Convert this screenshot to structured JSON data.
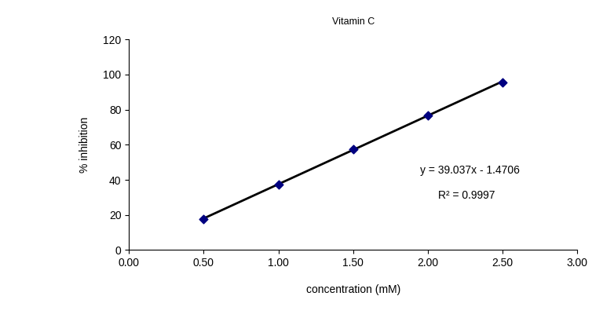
{
  "chart_data": {
    "type": "scatter",
    "title": "Vitamin C",
    "x_label": "concentration (mM)",
    "y_label": "% inhibition",
    "series": [
      {
        "type": "scatter",
        "color": "#000080",
        "marker": "diamond",
        "x": [
          0.5,
          1.0,
          1.5,
          2.0,
          2.5
        ],
        "values": [
          17.5,
          37.5,
          57.5,
          76.5,
          95.5
        ]
      },
      {
        "type": "line",
        "color": "#000000",
        "line_style": "solid",
        "x": [
          0.5,
          2.5
        ],
        "values": [
          18.0,
          96.1
        ]
      }
    ],
    "annotations": [
      "y = 39.037x - 1.4706",
      "R² = 0.9997"
    ],
    "xlim": [
      0,
      3.0
    ],
    "xticks": [
      {
        "value": 0,
        "label": "0.00"
      },
      {
        "value": 0.5,
        "label": "0.50"
      },
      {
        "value": 1.0,
        "label": "1.00"
      },
      {
        "value": 1.5,
        "label": "1.50"
      },
      {
        "value": 2.0,
        "label": "2.00"
      },
      {
        "value": 2.5,
        "label": "2.50"
      },
      {
        "value": 3.0,
        "label": "3.00"
      }
    ],
    "ylim": [
      0,
      120
    ],
    "yticks": [
      0,
      20,
      40,
      60,
      80,
      100,
      120
    ],
    "grid": false
  }
}
